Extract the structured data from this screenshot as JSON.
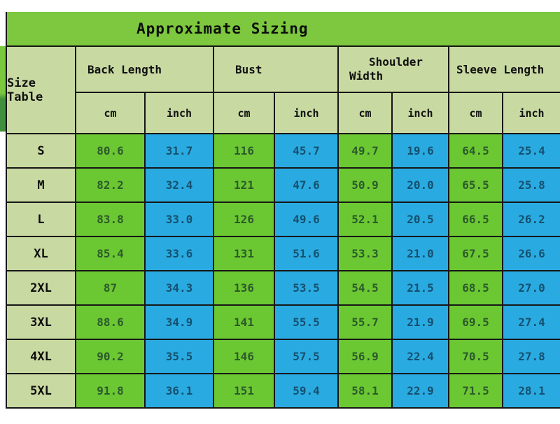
{
  "title": "Approximate Sizing",
  "size_table_label": "Size Table",
  "groups": [
    "Back Length",
    "Bust",
    "Shoulder Width",
    "Sleeve Length"
  ],
  "units": {
    "cm": "cm",
    "inch": "inch"
  },
  "rows": [
    {
      "size": "S",
      "values": [
        "80.6",
        "31.7",
        "116",
        "45.7",
        "49.7",
        "19.6",
        "64.5",
        "25.4"
      ]
    },
    {
      "size": "M",
      "values": [
        "82.2",
        "32.4",
        "121",
        "47.6",
        "50.9",
        "20.0",
        "65.5",
        "25.8"
      ]
    },
    {
      "size": "L",
      "values": [
        "83.8",
        "33.0",
        "126",
        "49.6",
        "52.1",
        "20.5",
        "66.5",
        "26.2"
      ]
    },
    {
      "size": "XL",
      "values": [
        "85.4",
        "33.6",
        "131",
        "51.6",
        "53.3",
        "21.0",
        "67.5",
        "26.6"
      ]
    },
    {
      "size": "2XL",
      "values": [
        "87",
        "34.3",
        "136",
        "53.5",
        "54.5",
        "21.5",
        "68.5",
        "27.0"
      ]
    },
    {
      "size": "3XL",
      "values": [
        "88.6",
        "34.9",
        "141",
        "55.5",
        "55.7",
        "21.9",
        "69.5",
        "27.4"
      ]
    },
    {
      "size": "4XL",
      "values": [
        "90.2",
        "35.5",
        "146",
        "57.5",
        "56.9",
        "22.4",
        "70.5",
        "27.8"
      ]
    },
    {
      "size": "5XL",
      "values": [
        "91.8",
        "36.1",
        "151",
        "59.4",
        "58.1",
        "22.9",
        "71.5",
        "28.1"
      ]
    }
  ],
  "colors": {
    "title_green": "#7dc83e",
    "header_sage": "#c9d9a2",
    "cell_green": "#6cc832",
    "cell_blue": "#29abe2",
    "border": "#161616",
    "text_on_green": "#2b5a2b",
    "text_on_blue": "#16506e"
  },
  "chart_data": {
    "type": "table",
    "title": "Approximate Sizing",
    "row_header": "Size Table",
    "columns": [
      "Back Length cm",
      "Back Length inch",
      "Bust cm",
      "Bust inch",
      "Shoulder Width cm",
      "Shoulder Width inch",
      "Sleeve Length cm",
      "Sleeve Length inch"
    ],
    "sizes": [
      "S",
      "M",
      "L",
      "XL",
      "2XL",
      "3XL",
      "4XL",
      "5XL"
    ],
    "values": [
      [
        80.6,
        31.7,
        116,
        45.7,
        49.7,
        19.6,
        64.5,
        25.4
      ],
      [
        82.2,
        32.4,
        121,
        47.6,
        50.9,
        20.0,
        65.5,
        25.8
      ],
      [
        83.8,
        33.0,
        126,
        49.6,
        52.1,
        20.5,
        66.5,
        26.2
      ],
      [
        85.4,
        33.6,
        131,
        51.6,
        53.3,
        21.0,
        67.5,
        26.6
      ],
      [
        87,
        34.3,
        136,
        53.5,
        54.5,
        21.5,
        68.5,
        27.0
      ],
      [
        88.6,
        34.9,
        141,
        55.5,
        55.7,
        21.9,
        69.5,
        27.4
      ],
      [
        90.2,
        35.5,
        146,
        57.5,
        56.9,
        22.4,
        70.5,
        27.8
      ],
      [
        91.8,
        36.1,
        151,
        59.4,
        58.1,
        22.9,
        71.5,
        28.1
      ]
    ]
  }
}
